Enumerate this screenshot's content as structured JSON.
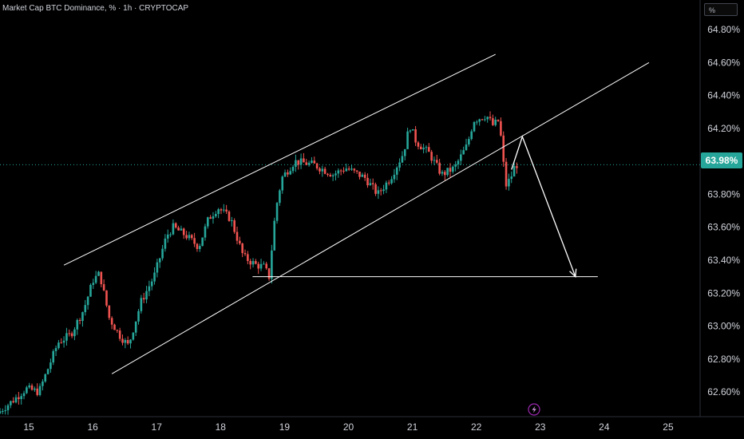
{
  "header": {
    "title": "Market Cap BTC Dominance, % · 1h · CRYPTOCAP",
    "unit_label": "%"
  },
  "price_tag": {
    "label": "63.98%",
    "value": 63.98,
    "color": "#26a69a"
  },
  "colors": {
    "up": "#26a69a",
    "down": "#ef5350",
    "line": "#ffffff",
    "price_line": "#26a69a"
  },
  "icons": [
    "lightning-icon"
  ],
  "chart_data": {
    "type": "candlestick",
    "x_ticks": [
      "15",
      "16",
      "17",
      "18",
      "19",
      "20",
      "21",
      "22",
      "23",
      "24",
      "25"
    ],
    "y_ticks": [
      "62.60%",
      "62.80%",
      "63.00%",
      "63.20%",
      "63.40%",
      "63.60%",
      "63.80%",
      "64.00%",
      "64.20%",
      "64.40%",
      "64.60%",
      "64.80%"
    ],
    "y_values": [
      62.6,
      62.8,
      63.0,
      63.2,
      63.4,
      63.6,
      63.8,
      64.0,
      64.2,
      64.4,
      64.6,
      64.8
    ],
    "ylim": [
      62.45,
      64.98
    ],
    "xlim": [
      14.55,
      25.5
    ],
    "current_price": 63.98,
    "price_path": [
      [
        14.55,
        62.47
      ],
      [
        14.8,
        62.55
      ],
      [
        15.0,
        62.62
      ],
      [
        15.2,
        62.6
      ],
      [
        15.5,
        62.9
      ],
      [
        15.7,
        62.95
      ],
      [
        15.9,
        63.1
      ],
      [
        16.05,
        63.28
      ],
      [
        16.15,
        63.32
      ],
      [
        16.3,
        63.05
      ],
      [
        16.45,
        62.95
      ],
      [
        16.6,
        62.88
      ],
      [
        16.8,
        63.15
      ],
      [
        17.0,
        63.3
      ],
      [
        17.2,
        63.55
      ],
      [
        17.3,
        63.6
      ],
      [
        17.5,
        63.55
      ],
      [
        17.7,
        63.48
      ],
      [
        17.85,
        63.65
      ],
      [
        18.0,
        63.72
      ],
      [
        18.2,
        63.65
      ],
      [
        18.4,
        63.42
      ],
      [
        18.6,
        63.37
      ],
      [
        18.72,
        63.36
      ],
      [
        18.8,
        63.3
      ],
      [
        18.9,
        63.7
      ],
      [
        19.0,
        63.9
      ],
      [
        19.2,
        64.0
      ],
      [
        19.5,
        63.98
      ],
      [
        19.8,
        63.92
      ],
      [
        20.0,
        63.96
      ],
      [
        20.3,
        63.9
      ],
      [
        20.5,
        63.8
      ],
      [
        20.7,
        63.9
      ],
      [
        20.9,
        64.05
      ],
      [
        21.0,
        64.22
      ],
      [
        21.1,
        64.12
      ],
      [
        21.3,
        64.05
      ],
      [
        21.5,
        63.92
      ],
      [
        21.7,
        63.96
      ],
      [
        21.9,
        64.1
      ],
      [
        22.0,
        64.25
      ],
      [
        22.2,
        64.28
      ],
      [
        22.3,
        64.22
      ],
      [
        22.4,
        64.25
      ],
      [
        22.45,
        64.05
      ],
      [
        22.5,
        63.85
      ],
      [
        22.58,
        63.9
      ],
      [
        22.65,
        63.98
      ]
    ],
    "annotations": [
      {
        "type": "line",
        "name": "channel-upper-line",
        "from": [
          15.55,
          63.37
        ],
        "to": [
          22.3,
          64.65
        ]
      },
      {
        "type": "line",
        "name": "channel-lower-line",
        "from": [
          16.3,
          62.71
        ],
        "to": [
          24.7,
          64.6
        ]
      },
      {
        "type": "line",
        "name": "support-horizontal-line",
        "from": [
          18.5,
          63.3
        ],
        "to": [
          23.9,
          63.3
        ]
      },
      {
        "type": "polyline",
        "name": "projection-path",
        "points": [
          [
            22.55,
            63.95
          ],
          [
            22.72,
            64.15
          ],
          [
            23.55,
            63.3
          ]
        ]
      }
    ]
  }
}
